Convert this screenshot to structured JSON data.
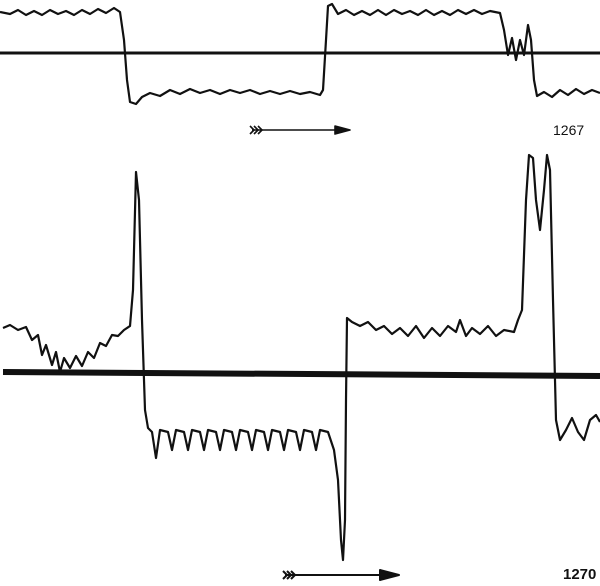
{
  "figure": {
    "panels": [
      {
        "label": "1267",
        "direction": "right"
      },
      {
        "label": "1270",
        "direction": "right"
      }
    ],
    "ink_color": "#111111"
  }
}
